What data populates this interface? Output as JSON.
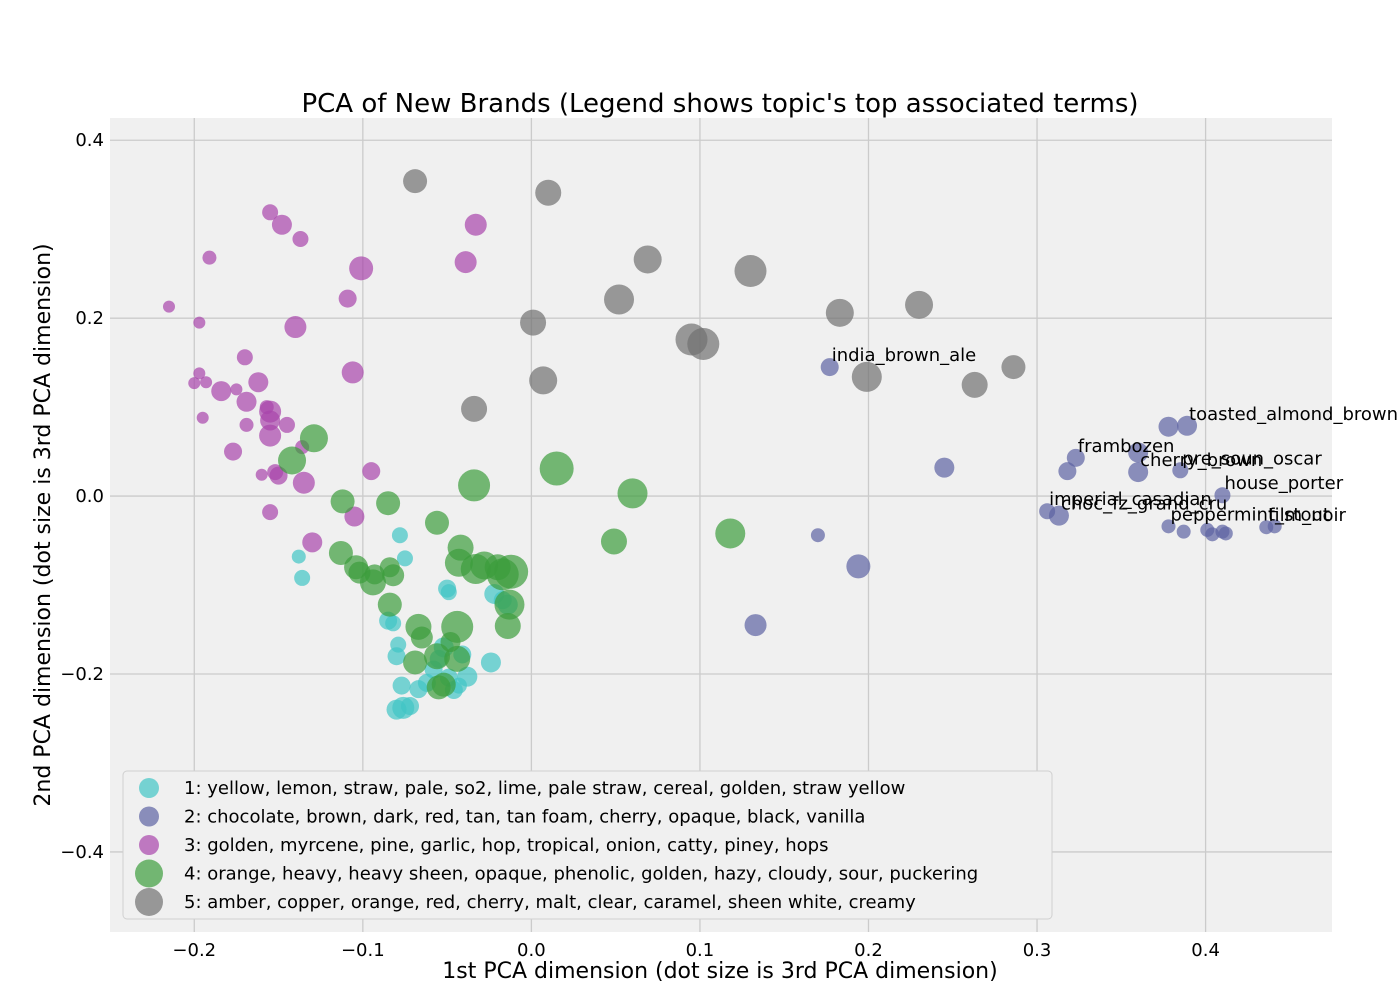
{
  "chart_data": {
    "type": "scatter",
    "title": "PCA of New Brands (Legend shows topic's top associated terms)",
    "xlabel": "1st PCA dimension (dot size is 3rd PCA dimension)",
    "ylabel": "2nd PCA dimension (dot size is 3rd PCA dimension)",
    "xlim": [
      -0.25,
      0.475
    ],
    "ylim": [
      -0.49,
      0.425
    ],
    "x_ticks": [
      -0.2,
      -0.1,
      0.0,
      0.1,
      0.2,
      0.3,
      0.4
    ],
    "x_tick_labels": [
      "−0.2",
      "−0.1",
      "0.0",
      "0.1",
      "0.2",
      "0.3",
      "0.4"
    ],
    "y_ticks": [
      0.4,
      0.2,
      0.0,
      -0.2,
      -0.4
    ],
    "y_tick_labels": [
      "0.4",
      "0.2",
      "0.0",
      "−0.2",
      "−0.4"
    ],
    "grid": true,
    "legend_position": "lower-left",
    "colors": {
      "plot_background": "#f0f0f0",
      "grid": "#cbcbcb",
      "legend_background": "#f0f0f0",
      "legend_border": "#d0d0d0"
    },
    "series": [
      {
        "name": "1: yellow, lemon, straw, pale, so2, lime, pale straw, cereal, golden, straw yellow",
        "color": "#40c4c4",
        "points": [
          [
            -0.138,
            -0.068,
            7
          ],
          [
            -0.136,
            -0.092,
            8
          ],
          [
            -0.078,
            -0.044,
            8
          ],
          [
            -0.075,
            -0.07,
            8
          ],
          [
            -0.085,
            -0.14,
            9
          ],
          [
            -0.082,
            -0.143,
            8
          ],
          [
            -0.079,
            -0.167,
            8
          ],
          [
            -0.08,
            -0.18,
            9
          ],
          [
            -0.077,
            -0.213,
            9
          ],
          [
            -0.08,
            -0.24,
            10
          ],
          [
            -0.076,
            -0.238,
            11
          ],
          [
            -0.072,
            -0.236,
            9
          ],
          [
            -0.067,
            -0.217,
            9
          ],
          [
            -0.062,
            -0.21,
            9
          ],
          [
            -0.058,
            -0.195,
            9
          ],
          [
            -0.055,
            -0.183,
            9
          ],
          [
            -0.052,
            -0.17,
            10
          ],
          [
            -0.049,
            -0.204,
            9
          ],
          [
            -0.046,
            -0.218,
            9
          ],
          [
            -0.043,
            -0.213,
            8
          ],
          [
            -0.041,
            -0.178,
            9
          ],
          [
            -0.038,
            -0.203,
            10
          ],
          [
            -0.05,
            -0.104,
            9
          ],
          [
            -0.049,
            -0.108,
            8
          ],
          [
            -0.024,
            -0.187,
            10
          ],
          [
            -0.022,
            -0.11,
            10
          ],
          [
            -0.017,
            -0.117,
            9
          ],
          [
            -0.014,
            -0.122,
            10
          ]
        ],
        "labels": []
      },
      {
        "name": "2: chocolate, brown, dark, red, tan, tan foam, cherry, opaque, black, vanilla",
        "color": "#5d63a2",
        "points": [
          [
            0.177,
            0.145,
            9
          ],
          [
            0.245,
            0.032,
            10
          ],
          [
            0.17,
            -0.044,
            7
          ],
          [
            0.194,
            -0.079,
            12
          ],
          [
            0.133,
            -0.145,
            11
          ],
          [
            0.378,
            0.078,
            10
          ],
          [
            0.389,
            0.079,
            10
          ],
          [
            0.323,
            0.043,
            9
          ],
          [
            0.318,
            0.028,
            9
          ],
          [
            0.36,
            0.049,
            10
          ],
          [
            0.36,
            0.027,
            10
          ],
          [
            0.385,
            0.029,
            8
          ],
          [
            0.41,
            0.001,
            8
          ],
          [
            0.306,
            -0.017,
            8
          ],
          [
            0.313,
            -0.022,
            10
          ],
          [
            0.378,
            -0.034,
            7
          ],
          [
            0.387,
            -0.04,
            7
          ],
          [
            0.401,
            -0.038,
            7
          ],
          [
            0.404,
            -0.043,
            7
          ],
          [
            0.41,
            -0.04,
            7
          ],
          [
            0.412,
            -0.042,
            7
          ],
          [
            0.436,
            -0.035,
            7
          ],
          [
            0.441,
            -0.034,
            7
          ]
        ],
        "labels": [
          {
            "text": "india_brown_ale",
            "x": 0.177,
            "y": 0.145
          },
          {
            "text": "toasted_almond_brown",
            "x": 0.389,
            "y": 0.079
          },
          {
            "text": "frambozen",
            "x": 0.323,
            "y": 0.043
          },
          {
            "text": "cherry_brown",
            "x": 0.36,
            "y": 0.027
          },
          {
            "text": "pre_soun_oscar",
            "x": 0.385,
            "y": 0.029
          },
          {
            "text": "house_porter",
            "x": 0.41,
            "y": 0.001
          },
          {
            "text": "imperial_casadian",
            "x": 0.306,
            "y": -0.017
          },
          {
            "text": "choc_fz_grand_cru",
            "x": 0.313,
            "y": -0.022
          },
          {
            "text": "peppermint_stout",
            "x": 0.378,
            "y": -0.034
          },
          {
            "text": "film_noir",
            "x": 0.436,
            "y": -0.035
          }
        ]
      },
      {
        "name": "3: golden, myrcene, pine, garlic, hop, tropical, onion, catty, piney, hops",
        "color": "#a844ab",
        "points": [
          [
            -0.215,
            0.213,
            6
          ],
          [
            -0.197,
            0.195,
            6
          ],
          [
            -0.191,
            0.268,
            7
          ],
          [
            -0.155,
            0.319,
            8
          ],
          [
            -0.148,
            0.305,
            10
          ],
          [
            -0.137,
            0.289,
            8
          ],
          [
            -0.14,
            0.19,
            11
          ],
          [
            -0.101,
            0.256,
            12
          ],
          [
            -0.109,
            0.222,
            9
          ],
          [
            -0.033,
            0.305,
            11
          ],
          [
            -0.039,
            0.263,
            11
          ],
          [
            -0.106,
            0.139,
            11
          ],
          [
            -0.17,
            0.156,
            8
          ],
          [
            -0.197,
            0.138,
            6
          ],
          [
            -0.2,
            0.127,
            6
          ],
          [
            -0.193,
            0.128,
            6
          ],
          [
            -0.184,
            0.118,
            10
          ],
          [
            -0.175,
            0.12,
            6
          ],
          [
            -0.162,
            0.128,
            10
          ],
          [
            -0.169,
            0.106,
            10
          ],
          [
            -0.195,
            0.088,
            6
          ],
          [
            -0.169,
            0.08,
            7
          ],
          [
            -0.157,
            0.1,
            7
          ],
          [
            -0.155,
            0.095,
            11
          ],
          [
            -0.145,
            0.08,
            8
          ],
          [
            -0.155,
            0.085,
            10
          ],
          [
            -0.155,
            0.068,
            11
          ],
          [
            -0.177,
            0.05,
            9
          ],
          [
            -0.16,
            0.024,
            6
          ],
          [
            -0.152,
            0.027,
            8
          ],
          [
            -0.15,
            0.023,
            9
          ],
          [
            -0.136,
            0.055,
            7
          ],
          [
            -0.135,
            0.015,
            11
          ],
          [
            -0.155,
            -0.018,
            8
          ],
          [
            -0.13,
            -0.052,
            10
          ],
          [
            -0.095,
            0.028,
            9
          ],
          [
            -0.105,
            -0.023,
            10
          ]
        ],
        "labels": []
      },
      {
        "name": "4: orange, heavy, heavy sheen, opaque, phenolic, golden, hazy, cloudy, sour, puckering",
        "color": "#3c9c3c",
        "points": [
          [
            -0.129,
            0.065,
            14
          ],
          [
            -0.142,
            0.04,
            14
          ],
          [
            -0.112,
            -0.006,
            12
          ],
          [
            -0.085,
            -0.008,
            12
          ],
          [
            -0.113,
            -0.064,
            12
          ],
          [
            -0.104,
            -0.08,
            12
          ],
          [
            -0.102,
            -0.086,
            11
          ],
          [
            -0.094,
            -0.097,
            13
          ],
          [
            -0.093,
            -0.088,
            10
          ],
          [
            -0.082,
            -0.089,
            11
          ],
          [
            -0.084,
            -0.08,
            10
          ],
          [
            -0.084,
            -0.122,
            12
          ],
          [
            -0.067,
            -0.147,
            13
          ],
          [
            -0.065,
            -0.159,
            11
          ],
          [
            -0.069,
            -0.187,
            12
          ],
          [
            -0.056,
            -0.18,
            13
          ],
          [
            -0.055,
            -0.215,
            12
          ],
          [
            -0.052,
            -0.212,
            12
          ],
          [
            -0.048,
            -0.164,
            10
          ],
          [
            -0.044,
            -0.183,
            13
          ],
          [
            -0.044,
            -0.147,
            16
          ],
          [
            -0.043,
            -0.075,
            14
          ],
          [
            -0.042,
            -0.058,
            13
          ],
          [
            -0.033,
            -0.082,
            15
          ],
          [
            -0.028,
            -0.078,
            14
          ],
          [
            -0.02,
            -0.08,
            13
          ],
          [
            -0.017,
            -0.088,
            16
          ],
          [
            -0.014,
            -0.146,
            13
          ],
          [
            -0.012,
            -0.085,
            17
          ],
          [
            -0.013,
            -0.122,
            15
          ],
          [
            -0.056,
            -0.03,
            12
          ],
          [
            -0.034,
            0.012,
            16
          ],
          [
            0.015,
            0.031,
            17
          ],
          [
            0.06,
            0.003,
            15
          ],
          [
            0.049,
            -0.051,
            13
          ],
          [
            0.118,
            -0.042,
            15
          ]
        ],
        "labels": []
      },
      {
        "name": "5: amber, copper, orange, red, cherry, malt, clear, caramel, sheen white, creamy",
        "color": "#707070",
        "points": [
          [
            -0.069,
            0.354,
            12
          ],
          [
            0.01,
            0.341,
            13
          ],
          [
            0.069,
            0.266,
            14
          ],
          [
            0.13,
            0.253,
            16
          ],
          [
            0.052,
            0.221,
            15
          ],
          [
            0.001,
            0.195,
            13
          ],
          [
            0.183,
            0.206,
            14
          ],
          [
            0.23,
            0.215,
            14
          ],
          [
            0.095,
            0.176,
            16
          ],
          [
            0.102,
            0.171,
            16
          ],
          [
            0.007,
            0.13,
            14
          ],
          [
            -0.034,
            0.098,
            13
          ],
          [
            0.199,
            0.134,
            15
          ],
          [
            0.263,
            0.125,
            13
          ],
          [
            0.286,
            0.145,
            12
          ]
        ],
        "labels": []
      }
    ]
  }
}
